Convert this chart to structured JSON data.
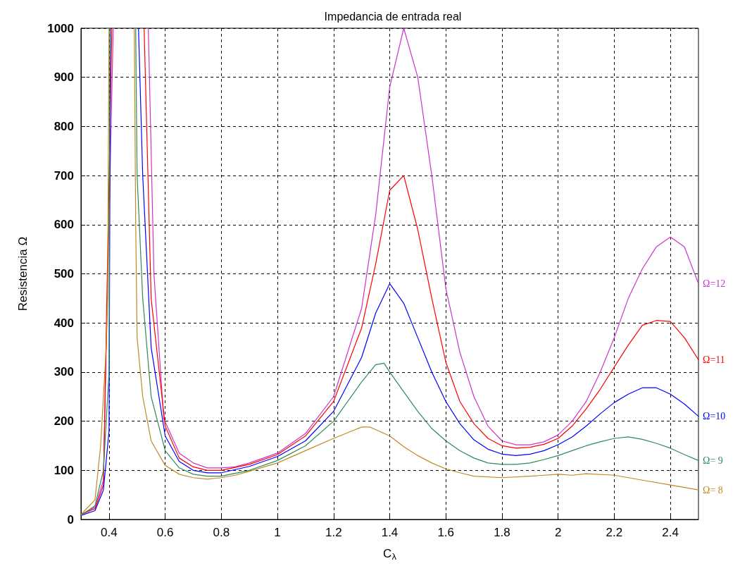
{
  "chart_data": {
    "type": "line",
    "title": "Impedancia de entrada real",
    "xlabel": "C$_{λ}$",
    "ylabel": "Resistencia Ω",
    "xlim": [
      0.3,
      2.5
    ],
    "xticks": [
      0.4,
      0.6,
      0.8,
      1,
      1.2,
      1.4,
      1.6,
      1.8,
      2,
      2.2,
      2.4
    ],
    "ylim": [
      0,
      1000
    ],
    "yticks": [
      0,
      100,
      200,
      300,
      400,
      500,
      600,
      700,
      800,
      900,
      1000
    ],
    "grid": true,
    "legend": false,
    "marker": "none",
    "line_style": "solid",
    "series": [
      {
        "name": "Ω=12",
        "color": "#cc33cc",
        "x": [
          0.3,
          0.35,
          0.38,
          0.415,
          0.47,
          0.54,
          0.56,
          0.595,
          0.65,
          0.7,
          0.75,
          0.8,
          0.85,
          0.9,
          1.0,
          1.1,
          1.2,
          1.3,
          1.35,
          1.4,
          1.45,
          1.5,
          1.55,
          1.6,
          1.65,
          1.7,
          1.75,
          1.8,
          1.85,
          1.9,
          1.95,
          2.0,
          2.05,
          2.1,
          2.15,
          2.2,
          2.25,
          2.3,
          2.35,
          2.4,
          2.45,
          2.5
        ],
        "values": [
          10,
          25,
          80,
          1000,
          null,
          1000,
          500,
          205,
          135,
          115,
          105,
          105,
          107,
          115,
          135,
          175,
          250,
          430,
          620,
          880,
          1000,
          900,
          700,
          470,
          340,
          250,
          190,
          160,
          152,
          152,
          158,
          172,
          200,
          240,
          300,
          370,
          450,
          510,
          555,
          575,
          555,
          480
        ]
      },
      {
        "name": "Ω=11",
        "color": "#ff0000",
        "x": [
          0.3,
          0.35,
          0.38,
          0.41,
          0.47,
          0.525,
          0.55,
          0.6,
          0.65,
          0.7,
          0.75,
          0.8,
          0.9,
          1.0,
          1.1,
          1.2,
          1.3,
          1.35,
          1.4,
          1.45,
          1.5,
          1.55,
          1.6,
          1.65,
          1.7,
          1.75,
          1.8,
          1.85,
          1.9,
          1.95,
          2.0,
          2.05,
          2.1,
          2.15,
          2.2,
          2.25,
          2.3,
          2.35,
          2.4,
          2.45,
          2.5
        ],
        "values": [
          10,
          22,
          70,
          1000,
          null,
          1000,
          450,
          190,
          125,
          107,
          100,
          100,
          112,
          132,
          170,
          240,
          390,
          520,
          670,
          700,
          590,
          450,
          320,
          240,
          195,
          165,
          150,
          145,
          147,
          153,
          165,
          190,
          225,
          265,
          310,
          355,
          395,
          405,
          403,
          370,
          325
        ]
      },
      {
        "name": "Ω=10",
        "color": "#0000ff",
        "x": [
          0.3,
          0.35,
          0.38,
          0.4,
          0.405,
          0.46,
          0.505,
          0.52,
          0.55,
          0.6,
          0.65,
          0.7,
          0.75,
          0.8,
          0.9,
          1.0,
          1.1,
          1.2,
          1.3,
          1.35,
          1.4,
          1.45,
          1.5,
          1.55,
          1.6,
          1.65,
          1.7,
          1.75,
          1.8,
          1.85,
          1.9,
          1.95,
          2.0,
          2.05,
          2.1,
          2.15,
          2.2,
          2.25,
          2.3,
          2.35,
          2.4,
          2.45,
          2.5
        ],
        "values": [
          8,
          18,
          60,
          180,
          1000,
          null,
          1000,
          700,
          350,
          170,
          118,
          100,
          95,
          95,
          108,
          128,
          160,
          220,
          330,
          420,
          480,
          440,
          370,
          300,
          240,
          195,
          162,
          143,
          133,
          130,
          133,
          140,
          152,
          168,
          190,
          215,
          238,
          255,
          268,
          268,
          255,
          235,
          210
        ]
      },
      {
        "name": "Ω= 9",
        "color": "#2e8b57",
        "x": [
          0.3,
          0.35,
          0.38,
          0.4,
          0.403,
          0.45,
          0.495,
          0.5,
          0.52,
          0.55,
          0.6,
          0.65,
          0.7,
          0.75,
          0.8,
          0.9,
          1.0,
          1.1,
          1.2,
          1.3,
          1.35,
          1.38,
          1.4,
          1.45,
          1.5,
          1.55,
          1.6,
          1.65,
          1.7,
          1.75,
          1.8,
          1.85,
          1.9,
          1.95,
          2.0,
          2.05,
          2.1,
          2.15,
          2.2,
          2.25,
          2.3,
          2.35,
          2.4,
          2.45,
          2.5
        ],
        "values": [
          8,
          28,
          100,
          300,
          1000,
          null,
          1000,
          700,
          450,
          250,
          140,
          105,
          92,
          88,
          88,
          100,
          120,
          150,
          200,
          280,
          315,
          318,
          300,
          260,
          220,
          185,
          160,
          140,
          125,
          115,
          112,
          112,
          115,
          122,
          130,
          140,
          150,
          158,
          165,
          168,
          163,
          155,
          145,
          132,
          120
        ]
      },
      {
        "name": "Ω= 8",
        "color": "#c08a20",
        "x": [
          0.3,
          0.35,
          0.37,
          0.39,
          0.395,
          0.4,
          0.45,
          0.49,
          0.495,
          0.5,
          0.52,
          0.55,
          0.6,
          0.65,
          0.7,
          0.75,
          0.8,
          0.85,
          0.9,
          1.0,
          1.1,
          1.2,
          1.3,
          1.33,
          1.4,
          1.45,
          1.5,
          1.55,
          1.6,
          1.65,
          1.7,
          1.8,
          1.9,
          2.0,
          2.05,
          2.1,
          2.2,
          2.3,
          2.4,
          2.5
        ],
        "values": [
          10,
          40,
          150,
          350,
          450,
          1000,
          null,
          1000,
          600,
          370,
          250,
          160,
          110,
          92,
          85,
          82,
          85,
          90,
          98,
          115,
          140,
          165,
          188,
          188,
          170,
          148,
          130,
          115,
          103,
          95,
          88,
          85,
          88,
          92,
          90,
          93,
          90,
          80,
          70,
          60
        ]
      }
    ]
  }
}
